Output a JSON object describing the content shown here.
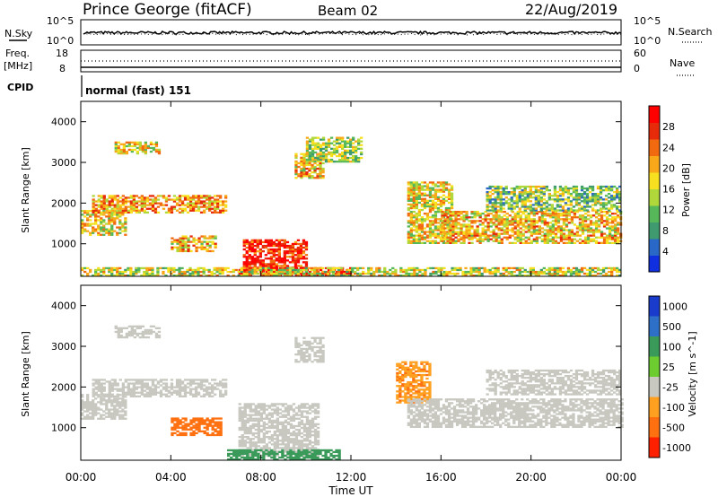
{
  "header": {
    "station": "Prince George (fitACF)",
    "beam": "Beam 02",
    "date": "22/Aug/2019"
  },
  "top_panels": {
    "nsky_label": "N.Sky",
    "nsky_ticks": [
      "10^5",
      "10^0"
    ],
    "nsearch_label": "N.Search",
    "nsearch_ticks": [
      "10^5",
      "10^0"
    ],
    "freq_label": "Freq.",
    "freq_unit": "[MHz]",
    "freq_ticks": [
      "18",
      "8"
    ],
    "nave_label": "Nave",
    "nave_ticks": [
      "60",
      "0"
    ],
    "cpid_label": "CPID",
    "cpid_value": "normal (fast) 151"
  },
  "x_axis": {
    "label": "Time UT",
    "ticks": [
      "00:00",
      "04:00",
      "08:00",
      "12:00",
      "16:00",
      "20:00",
      "00:00"
    ]
  },
  "colors": {
    "power_scale": [
      "#1030e0",
      "#2a68c8",
      "#3f9a70",
      "#57b85a",
      "#b0d83a",
      "#f6e020",
      "#f8a818",
      "#f26a10",
      "#e62a0a",
      "#ff0000"
    ],
    "velocity_scale": [
      "#1a3ccc",
      "#2e70c8",
      "#3a9a5a",
      "#6ccc30",
      "#c8c8c0",
      "#ffa020",
      "#ff7010",
      "#ff2000"
    ]
  },
  "chart_data": [
    {
      "type": "heatmap",
      "panel": "power",
      "ylabel": "Slant Range [km]",
      "yticks": [
        "4000",
        "3000",
        "2000",
        "1000"
      ],
      "ylim": [
        200,
        4500
      ],
      "xlim_hours": [
        0,
        24
      ],
      "colorbar_label": "Power [dB]",
      "colorbar_ticks": [
        "28",
        "24",
        "20",
        "16",
        "12",
        "8",
        "4"
      ],
      "regions": [
        {
          "t0": 0.0,
          "t1": 2.0,
          "r0": 1200,
          "r1": 1800,
          "level": 0.55
        },
        {
          "t0": 0.5,
          "t1": 6.5,
          "r0": 1750,
          "r1": 2200,
          "level": 0.65
        },
        {
          "t0": 1.5,
          "t1": 3.5,
          "r0": 3200,
          "r1": 3500,
          "level": 0.55
        },
        {
          "t0": 4.0,
          "t1": 6.0,
          "r0": 800,
          "r1": 1200,
          "level": 0.6
        },
        {
          "t0": 7.2,
          "t1": 10.0,
          "r0": 300,
          "r1": 1100,
          "level": 0.9
        },
        {
          "t0": 7.0,
          "t1": 12.0,
          "r0": 200,
          "r1": 400,
          "level": 0.95
        },
        {
          "t0": 9.5,
          "t1": 10.8,
          "r0": 2600,
          "r1": 3200,
          "level": 0.6
        },
        {
          "t0": 10.0,
          "t1": 12.5,
          "r0": 3000,
          "r1": 3600,
          "level": 0.45
        },
        {
          "t0": 14.5,
          "t1": 16.5,
          "r0": 1000,
          "r1": 2500,
          "level": 0.55
        },
        {
          "t0": 16.0,
          "t1": 24.0,
          "r0": 1000,
          "r1": 1800,
          "level": 0.6
        },
        {
          "t0": 18.0,
          "t1": 24.0,
          "r0": 1800,
          "r1": 2400,
          "level": 0.4
        },
        {
          "t0": 0.0,
          "t1": 24.0,
          "r0": 200,
          "r1": 400,
          "level": 0.5
        }
      ]
    },
    {
      "type": "heatmap",
      "panel": "velocity",
      "ylabel": "Slant Range [km]",
      "yticks": [
        "4000",
        "3000",
        "2000",
        "1000"
      ],
      "ylim": [
        200,
        4500
      ],
      "xlim_hours": [
        0,
        24
      ],
      "colorbar_label": "Velocity [m s^-1]",
      "colorbar_ticks": [
        "1000",
        "500",
        "100",
        "25",
        "-25",
        "-100",
        "-500",
        "-1000"
      ],
      "regions": [
        {
          "t0": 0.0,
          "t1": 2.0,
          "r0": 1200,
          "r1": 1800,
          "v": 0
        },
        {
          "t0": 0.5,
          "t1": 6.5,
          "r0": 1750,
          "r1": 2200,
          "v": 0
        },
        {
          "t0": 1.5,
          "t1": 3.5,
          "r0": 3200,
          "r1": 3500,
          "v": 0
        },
        {
          "t0": 4.0,
          "t1": 6.2,
          "r0": 800,
          "r1": 1250,
          "v": -150
        },
        {
          "t0": 7.0,
          "t1": 10.5,
          "r0": 300,
          "r1": 1600,
          "v": 0
        },
        {
          "t0": 6.5,
          "t1": 11.5,
          "r0": 200,
          "r1": 450,
          "v": 200
        },
        {
          "t0": 9.5,
          "t1": 10.8,
          "r0": 2600,
          "r1": 3200,
          "v": 0
        },
        {
          "t0": 14.0,
          "t1": 15.5,
          "r0": 1600,
          "r1": 2600,
          "v": -80
        },
        {
          "t0": 14.5,
          "t1": 24.0,
          "r0": 1000,
          "r1": 1700,
          "v": 0
        },
        {
          "t0": 18.0,
          "t1": 24.0,
          "r0": 1800,
          "r1": 2400,
          "v": 0
        }
      ]
    }
  ]
}
